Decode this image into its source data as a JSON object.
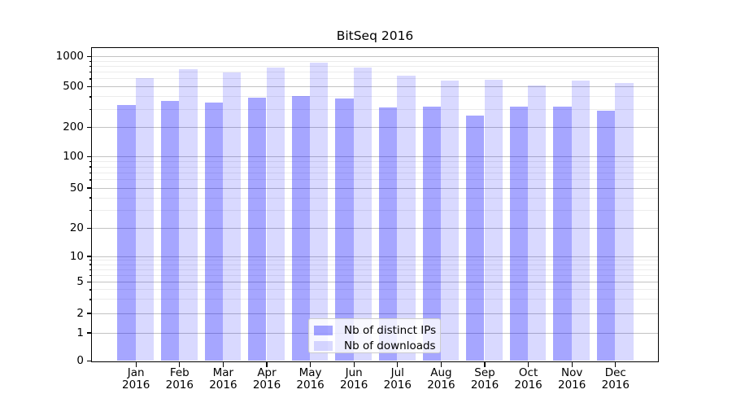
{
  "chart_data": {
    "type": "bar",
    "title": "BitSeq 2016",
    "y_scale": "symlog",
    "categories": [
      "Jan",
      "Feb",
      "Mar",
      "Apr",
      "May",
      "Jun",
      "Jul",
      "Aug",
      "Sep",
      "Oct",
      "Nov",
      "Dec"
    ],
    "year_label": "2016",
    "series": [
      {
        "name": "Nb of distinct IPs",
        "color": "#0000ff",
        "alpha": 0.35,
        "values": [
          330,
          360,
          350,
          390,
          400,
          380,
          310,
          320,
          260,
          320,
          315,
          290
        ]
      },
      {
        "name": "Nb of downloads",
        "color": "#0000ff",
        "alpha": 0.15,
        "values": [
          610,
          740,
          690,
          770,
          870,
          770,
          640,
          570,
          580,
          510,
          575,
          540
        ]
      }
    ],
    "y_axis": {
      "tick_values": [
        0,
        1,
        2,
        5,
        10,
        20,
        50,
        100,
        200,
        500,
        1000
      ],
      "tick_labels": [
        "0",
        "1",
        "2",
        "5",
        "10",
        "20",
        "50",
        "100",
        "200",
        "500",
        "1000"
      ],
      "minor_tick_values": [
        3,
        4,
        6,
        7,
        8,
        9,
        30,
        40,
        60,
        70,
        80,
        90,
        300,
        400,
        600,
        700,
        800,
        900
      ]
    },
    "ylim": [
      0,
      1100
    ],
    "grid": true,
    "legend": {
      "position": "lower center"
    },
    "colors": {
      "grid_major": "#c3c3c3",
      "grid_minor": "#ececec",
      "spine": "#000000",
      "text": "#000000",
      "background": "#ffffff"
    }
  }
}
